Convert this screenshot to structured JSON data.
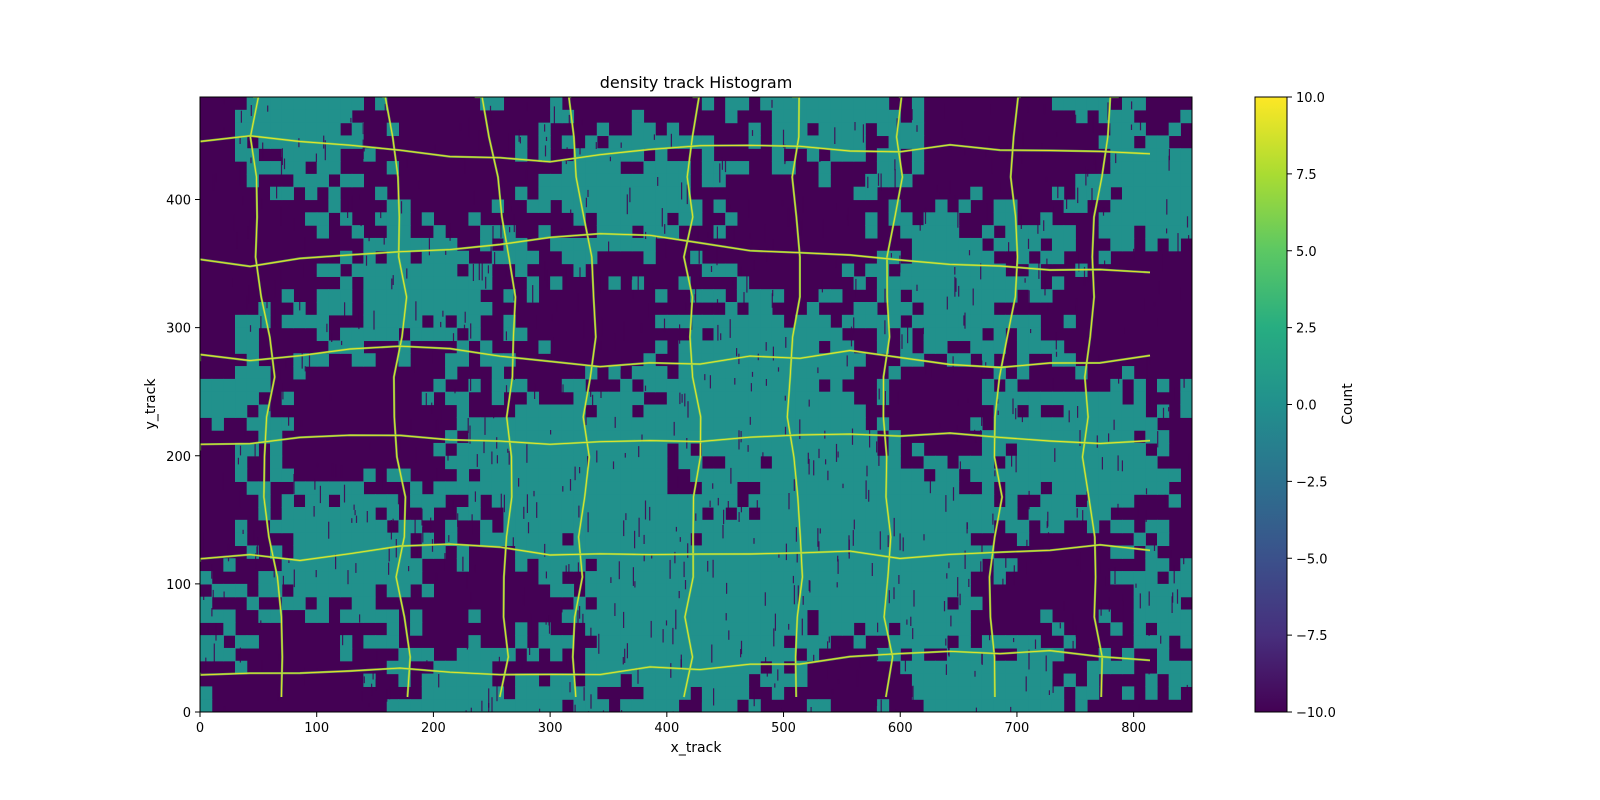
{
  "chart_data": {
    "type": "heatmap",
    "title": "density track Histogram",
    "xlabel": "x_track",
    "ylabel": "y_track",
    "xlim": [
      0,
      850
    ],
    "ylim": [
      0,
      480
    ],
    "x_ticks": [
      0,
      100,
      200,
      300,
      400,
      500,
      600,
      700,
      800
    ],
    "y_ticks": [
      0,
      100,
      200,
      300,
      400
    ],
    "x_tick_labels": [
      "0",
      "100",
      "200",
      "300",
      "400",
      "500",
      "600",
      "700",
      "800"
    ],
    "y_tick_labels": [
      "0",
      "100",
      "200",
      "300",
      "400"
    ],
    "colormap": "viridis",
    "colorbar": {
      "label": "Count",
      "vmin": -10.0,
      "vmax": 10.0,
      "ticks": [
        -10.0,
        -7.5,
        -5.0,
        -2.5,
        0.0,
        2.5,
        5.0,
        7.5,
        10.0
      ],
      "tick_labels": [
        "−10.0",
        "−7.5",
        "−5.0",
        "−2.5",
        "0.0",
        "2.5",
        "5.0",
        "7.5",
        "10.0"
      ]
    },
    "grid": false,
    "colors": {
      "low": "#440154",
      "mid": "#21918c",
      "high": "#fde725"
    }
  }
}
